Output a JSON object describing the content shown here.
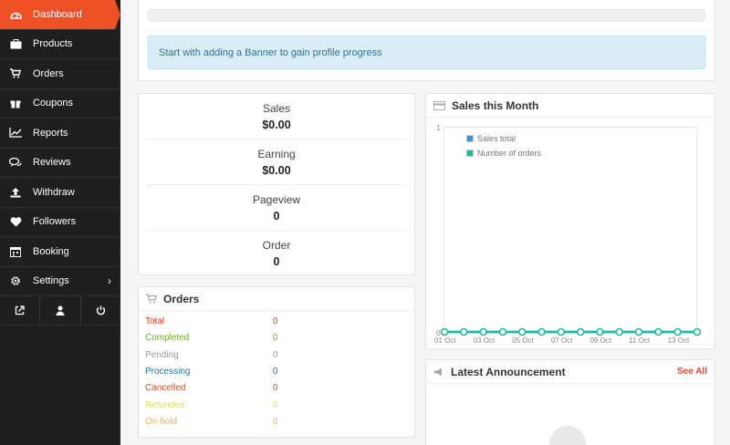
{
  "sidebar": {
    "items": [
      {
        "label": "Dashboard",
        "icon": "dashboard-icon"
      },
      {
        "label": "Products",
        "icon": "briefcase-icon"
      },
      {
        "label": "Orders",
        "icon": "cart-icon"
      },
      {
        "label": "Coupons",
        "icon": "gift-icon"
      },
      {
        "label": "Reports",
        "icon": "line-chart-icon"
      },
      {
        "label": "Reviews",
        "icon": "comments-icon"
      },
      {
        "label": "Withdraw",
        "icon": "upload-icon"
      },
      {
        "label": "Followers",
        "icon": "heart-icon"
      },
      {
        "label": "Booking",
        "icon": "calendar-icon"
      },
      {
        "label": "Settings",
        "icon": "gear-icon"
      }
    ],
    "active_color": "#f05025"
  },
  "profile": {
    "progress": 0,
    "alert": "Start with adding a Banner to gain profile progress"
  },
  "stats": [
    {
      "title": "Sales",
      "value": "$0.00"
    },
    {
      "title": "Earning",
      "value": "$0.00"
    },
    {
      "title": "Pageview",
      "value": "0"
    },
    {
      "title": "Order",
      "value": "0"
    }
  ],
  "orders": {
    "title": "Orders",
    "rows": [
      {
        "label": "Total",
        "value": "0",
        "color": "#e2401c"
      },
      {
        "label": "Completed",
        "value": "0",
        "color": "#73a724"
      },
      {
        "label": "Pending",
        "value": "0",
        "color": "#999999"
      },
      {
        "label": "Processing",
        "value": "0",
        "color": "#21759b"
      },
      {
        "label": "Cancelled",
        "value": "0",
        "color": "#d54e21"
      },
      {
        "label": "Refunded",
        "value": "0",
        "color": "#e6db55"
      },
      {
        "label": "On hold",
        "value": "0",
        "color": "#f0ad4e"
      }
    ]
  },
  "sales_chart": {
    "title": "Sales this Month"
  },
  "chart_data": {
    "type": "line",
    "title": "Sales this Month",
    "x": [
      "01 Oct",
      "02 Oct",
      "03 Oct",
      "04 Oct",
      "05 Oct",
      "06 Oct",
      "07 Oct",
      "08 Oct",
      "09 Oct",
      "10 Oct",
      "11 Oct",
      "12 Oct",
      "13 Oct",
      "14 Oct"
    ],
    "tick_labels": [
      "01 Oct",
      "03 Oct",
      "05 Oct",
      "07 Oct",
      "09 Oct",
      "11 Oct",
      "13 Oct"
    ],
    "series": [
      {
        "name": "Sales total",
        "values": [
          0,
          0,
          0,
          0,
          0,
          0,
          0,
          0,
          0,
          0,
          0,
          0,
          0,
          0
        ],
        "color": "#3498db"
      },
      {
        "name": "Number of orders",
        "values": [
          0,
          0,
          0,
          0,
          0,
          0,
          0,
          0,
          0,
          0,
          0,
          0,
          0,
          0
        ],
        "color": "#1abc9c"
      }
    ],
    "y_ticks": [
      "1",
      "0"
    ],
    "ylim": [
      0,
      1
    ],
    "legend_position": "top-left"
  },
  "announcement": {
    "title": "Latest Announcement",
    "see_all": "See All"
  }
}
